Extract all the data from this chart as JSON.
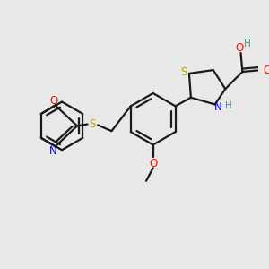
{
  "bg_color": "#e8e8e8",
  "bond_color": "#1a1a1a",
  "bond_width": 1.6,
  "atom_colors": {
    "S": "#b8a000",
    "N": "#0000ee",
    "O": "#ee1100",
    "H": "#4a8fa0"
  }
}
